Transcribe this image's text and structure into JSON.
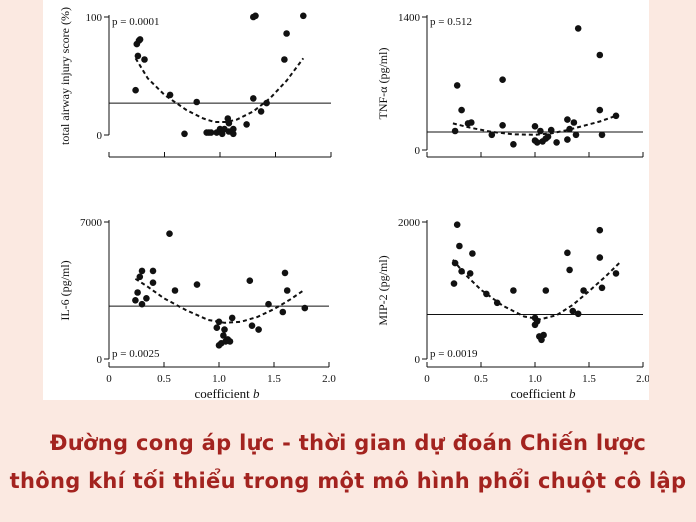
{
  "caption": {
    "line1": "Đường cong áp lực - thời gian dự đoán Chiến lược",
    "line2": "thông khí tối thiểu trong một mô hình phổi chuột cô lập"
  },
  "colors": {
    "background": "#fbe9e1",
    "caption": "#a3231f",
    "panel": "#ffffff",
    "ink": "#111111"
  },
  "chart_data": [
    {
      "type": "scatter",
      "panel": "top-left",
      "ylabel": "total airway injury score (%)",
      "xlabel": "",
      "p_value": "p = 0.0001",
      "xlim": [
        0,
        2.0
      ],
      "ylim": [
        0,
        100
      ],
      "yticks": [
        "100",
        "0"
      ],
      "reference_y": 27,
      "points": [
        [
          0.24,
          38
        ],
        [
          0.25,
          77
        ],
        [
          0.26,
          67
        ],
        [
          0.27,
          80
        ],
        [
          0.28,
          81
        ],
        [
          0.32,
          64
        ],
        [
          0.55,
          34
        ],
        [
          0.68,
          1
        ],
        [
          0.79,
          28
        ],
        [
          0.88,
          2
        ],
        [
          0.9,
          2
        ],
        [
          0.92,
          2
        ],
        [
          0.97,
          2
        ],
        [
          1.0,
          5
        ],
        [
          1.02,
          1
        ],
        [
          1.04,
          5
        ],
        [
          1.07,
          14
        ],
        [
          1.08,
          10
        ],
        [
          1.08,
          3
        ],
        [
          1.12,
          5
        ],
        [
          1.12,
          1
        ],
        [
          1.24,
          9
        ],
        [
          1.3,
          31
        ],
        [
          1.3,
          100
        ],
        [
          1.32,
          101
        ],
        [
          1.37,
          20
        ],
        [
          1.42,
          27
        ],
        [
          1.58,
          64
        ],
        [
          1.6,
          86
        ],
        [
          1.75,
          101
        ]
      ],
      "fit": [
        [
          0.24,
          65
        ],
        [
          0.35,
          48
        ],
        [
          0.5,
          34
        ],
        [
          0.7,
          21
        ],
        [
          0.85,
          14
        ],
        [
          0.95,
          11
        ],
        [
          1.05,
          11
        ],
        [
          1.15,
          13
        ],
        [
          1.3,
          20
        ],
        [
          1.45,
          31
        ],
        [
          1.6,
          46
        ],
        [
          1.75,
          65
        ]
      ]
    },
    {
      "type": "scatter",
      "panel": "top-right",
      "ylabel": "TNF-α (pg/ml)",
      "xlabel": "",
      "p_value": "p = 0.512",
      "xlim": [
        0,
        2.0
      ],
      "ylim": [
        0,
        1400
      ],
      "yticks": [
        "1400",
        "0"
      ],
      "reference_y": 190,
      "points": [
        [
          0.26,
          200
        ],
        [
          0.28,
          680
        ],
        [
          0.32,
          420
        ],
        [
          0.38,
          280
        ],
        [
          0.41,
          290
        ],
        [
          0.6,
          160
        ],
        [
          0.7,
          260
        ],
        [
          0.7,
          740
        ],
        [
          0.8,
          60
        ],
        [
          1.0,
          250
        ],
        [
          1.0,
          100
        ],
        [
          1.02,
          80
        ],
        [
          1.05,
          200
        ],
        [
          1.07,
          90
        ],
        [
          1.1,
          120
        ],
        [
          1.12,
          140
        ],
        [
          1.15,
          210
        ],
        [
          1.2,
          80
        ],
        [
          1.3,
          110
        ],
        [
          1.3,
          320
        ],
        [
          1.32,
          220
        ],
        [
          1.36,
          290
        ],
        [
          1.38,
          160
        ],
        [
          1.4,
          1280
        ],
        [
          1.6,
          1000
        ],
        [
          1.6,
          420
        ],
        [
          1.62,
          160
        ],
        [
          1.75,
          360
        ]
      ],
      "fit": [
        [
          0.24,
          280
        ],
        [
          0.4,
          235
        ],
        [
          0.6,
          190
        ],
        [
          0.8,
          165
        ],
        [
          1.0,
          160
        ],
        [
          1.15,
          175
        ],
        [
          1.3,
          210
        ],
        [
          1.45,
          255
        ],
        [
          1.6,
          300
        ],
        [
          1.75,
          360
        ]
      ]
    },
    {
      "type": "scatter",
      "panel": "bottom-left",
      "ylabel": "IL-6 (pg/ml)",
      "xlabel": "coefficient b",
      "p_value": "p = 0.0025",
      "xlim": [
        0,
        2.0
      ],
      "ylim": [
        0,
        7000
      ],
      "yticks": [
        "7000",
        "0"
      ],
      "xticks": [
        "0",
        "0.5",
        "1.0",
        "1.5",
        "2.0"
      ],
      "reference_y": 2700,
      "points": [
        [
          0.24,
          3000
        ],
        [
          0.26,
          3400
        ],
        [
          0.28,
          4200
        ],
        [
          0.3,
          4500
        ],
        [
          0.3,
          2800
        ],
        [
          0.34,
          3100
        ],
        [
          0.4,
          4500
        ],
        [
          0.4,
          3900
        ],
        [
          0.55,
          6400
        ],
        [
          0.6,
          3500
        ],
        [
          0.8,
          3800
        ],
        [
          0.98,
          1600
        ],
        [
          1.0,
          700
        ],
        [
          1.0,
          1900
        ],
        [
          1.02,
          800
        ],
        [
          1.04,
          1200
        ],
        [
          1.05,
          1500
        ],
        [
          1.06,
          900
        ],
        [
          1.08,
          1000
        ],
        [
          1.1,
          900
        ],
        [
          1.12,
          2100
        ],
        [
          1.28,
          4000
        ],
        [
          1.3,
          1700
        ],
        [
          1.36,
          1500
        ],
        [
          1.45,
          2800
        ],
        [
          1.58,
          2400
        ],
        [
          1.6,
          4400
        ],
        [
          1.62,
          3500
        ],
        [
          1.78,
          2600
        ]
      ],
      "fit": [
        [
          0.24,
          4100
        ],
        [
          0.35,
          3700
        ],
        [
          0.5,
          3100
        ],
        [
          0.7,
          2500
        ],
        [
          0.9,
          2000
        ],
        [
          1.05,
          1850
        ],
        [
          1.2,
          1900
        ],
        [
          1.35,
          2150
        ],
        [
          1.5,
          2550
        ],
        [
          1.65,
          3050
        ],
        [
          1.78,
          3550
        ]
      ]
    },
    {
      "type": "scatter",
      "panel": "bottom-right",
      "ylabel": "MIP-2 (pg/ml)",
      "xlabel": "coefficient b",
      "p_value": "p = 0.0019",
      "xlim": [
        0,
        2.0
      ],
      "ylim": [
        0,
        2000
      ],
      "yticks": [
        "2000",
        "0"
      ],
      "xticks": [
        "0",
        "0.5",
        "1.0",
        "1.5",
        "2.0"
      ],
      "reference_y": 650,
      "points": [
        [
          0.25,
          1100
        ],
        [
          0.26,
          1400
        ],
        [
          0.28,
          1960
        ],
        [
          0.3,
          1650
        ],
        [
          0.32,
          1280
        ],
        [
          0.4,
          1250
        ],
        [
          0.42,
          1540
        ],
        [
          0.55,
          950
        ],
        [
          0.65,
          820
        ],
        [
          0.8,
          1000
        ],
        [
          1.0,
          500
        ],
        [
          1.0,
          600
        ],
        [
          1.02,
          550
        ],
        [
          1.04,
          330
        ],
        [
          1.06,
          280
        ],
        [
          1.08,
          350
        ],
        [
          1.1,
          1000
        ],
        [
          1.3,
          1550
        ],
        [
          1.32,
          1300
        ],
        [
          1.35,
          700
        ],
        [
          1.4,
          660
        ],
        [
          1.45,
          1000
        ],
        [
          1.6,
          1880
        ],
        [
          1.6,
          1480
        ],
        [
          1.62,
          1040
        ],
        [
          1.75,
          1250
        ]
      ],
      "fit": [
        [
          0.24,
          1450
        ],
        [
          0.35,
          1240
        ],
        [
          0.5,
          1010
        ],
        [
          0.7,
          780
        ],
        [
          0.9,
          620
        ],
        [
          1.05,
          580
        ],
        [
          1.2,
          640
        ],
        [
          1.35,
          790
        ],
        [
          1.5,
          990
        ],
        [
          1.65,
          1200
        ],
        [
          1.78,
          1400
        ]
      ]
    }
  ]
}
